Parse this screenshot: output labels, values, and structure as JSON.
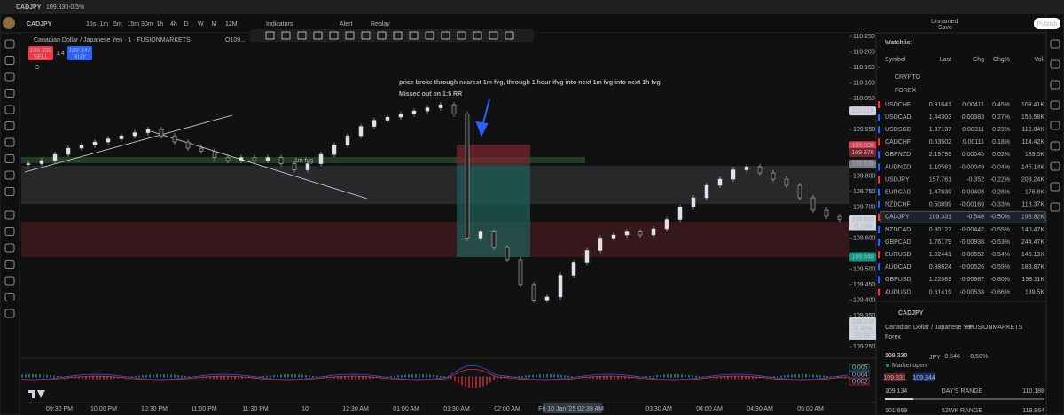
{
  "window": {
    "tab": "CADJPY",
    "tab_price": "109.330",
    "tab_change": "-0.5%"
  },
  "toolbar": {
    "symbol": "CADJPY",
    "intervals": [
      "15s",
      "1m",
      "5m",
      "15m",
      "30m",
      "1h",
      "4h",
      "D",
      "W",
      "M",
      "12M"
    ],
    "indicators": "Indicators",
    "alert": "Alert",
    "replay": "Replay",
    "layout": "Unnamed",
    "save": "Save",
    "publish": "Publish"
  },
  "chart": {
    "legend": "Canadian Dollar / Japanese Yen · 1 · FUSIONMARKETS",
    "ohlc": "O109...",
    "sell_price": "109.330",
    "sell": "SELL",
    "buy_price": "109.344",
    "buy": "BUY",
    "spread": "1.4",
    "indicator_count": "3",
    "annotation_1": "price broke through nearest 1m fvg, through 1 hour ifvg into next 1m fvg into next 1h fvg",
    "annotation_2": "Missed out on 1:5 RR",
    "fvg_label": "1m fvg",
    "ylim": [
      109.224,
      110.259
    ],
    "yticks": [
      {
        "value": 110.25,
        "label": "110.250"
      },
      {
        "value": 110.2,
        "label": "110.200"
      },
      {
        "value": 110.15,
        "label": "110.150"
      },
      {
        "value": 110.1,
        "label": "110.100"
      },
      {
        "value": 110.05,
        "label": "110.050"
      },
      {
        "value": 109.95,
        "label": "109.950"
      },
      {
        "value": 109.8,
        "label": "109.800"
      },
      {
        "value": 109.75,
        "label": "109.750"
      },
      {
        "value": 109.7,
        "label": "109.700"
      },
      {
        "value": 109.6,
        "label": "109.600"
      },
      {
        "value": 109.5,
        "label": "109.500"
      },
      {
        "value": 109.45,
        "label": "109.450"
      },
      {
        "value": 109.4,
        "label": "109.400"
      },
      {
        "value": 109.35,
        "label": "109.350"
      },
      {
        "value": 109.25,
        "label": "109.250"
      }
    ],
    "price_tags": [
      {
        "value": 110.01,
        "label": "110.010",
        "color": "#d1d4dc"
      },
      {
        "value": 109.898,
        "label": "109.898",
        "color": "#e53950"
      },
      {
        "value": 109.876,
        "label": "109.876",
        "color": "#7a2630"
      },
      {
        "value": 109.839,
        "label": "109.839",
        "color": "#787b86"
      },
      {
        "value": 109.66,
        "label": "109.660",
        "color": "#d1d4dc"
      },
      {
        "value": 109.54,
        "label": "109.540",
        "color": "#089981"
      },
      {
        "value": 109.33,
        "label": "109.330",
        "color": "#d1d4dc"
      }
    ],
    "tag_notes": [
      "-0.19%",
      "-0.49%",
      "00:58"
    ],
    "closes": [
      109.84,
      109.85,
      109.87,
      109.89,
      109.9,
      109.91,
      109.92,
      109.93,
      109.94,
      109.95,
      109.93,
      109.91,
      109.89,
      109.88,
      109.86,
      109.85,
      109.86,
      109.85,
      109.86,
      109.84,
      109.82,
      109.84,
      109.87,
      109.9,
      109.93,
      109.96,
      109.98,
      109.99,
      110.0,
      110.01,
      110.02,
      110.03,
      110.0,
      109.6,
      109.62,
      109.57,
      109.53,
      109.45,
      109.4,
      109.41,
      109.48,
      109.52,
      109.56,
      109.6,
      109.61,
      109.62,
      109.61,
      109.63,
      109.66,
      109.7,
      109.73,
      109.77,
      109.79,
      109.82,
      109.83,
      109.81,
      109.79,
      109.77,
      109.73,
      109.69,
      109.67,
      109.66
    ],
    "time_labels": [
      "09:30 PM",
      "10:00 PM",
      "10:30 PM",
      "11:00 PM",
      "11:30 PM",
      "10",
      "12:30 AM",
      "01:00 AM",
      "01:30 AM",
      "02:00 AM",
      "Fri 10 Jan '25   02:39 AM",
      "03:30 AM",
      "04:00 AM",
      "04:30 AM",
      "05:00 AM"
    ],
    "osc_labels": [
      "0.005",
      "0.004",
      "0.002"
    ]
  },
  "watchlist": {
    "title": "Watchlist",
    "columns": [
      "Symbol",
      "Last",
      "Chg",
      "Chg%",
      "Vol."
    ],
    "sections": [
      "CRYPTO",
      "FOREX"
    ],
    "rows": [
      [
        "USDCHF",
        "0.91641",
        "0.00411",
        "0.45%",
        "103.41K"
      ],
      [
        "USDCAD",
        "1.44303",
        "0.00383",
        "0.27%",
        "155.58K"
      ],
      [
        "USDSGD",
        "1.37137",
        "0.00311",
        "0.23%",
        "118.84K"
      ],
      [
        "CADCHF",
        "0.63502",
        "0.00111",
        "0.18%",
        "114.42K"
      ],
      [
        "GBPNZD",
        "2.19799",
        "0.00045",
        "0.02%",
        "189.5K"
      ],
      [
        "AUDNZD",
        "1.10581",
        "-0.00049",
        "-0.04%",
        "145.14K"
      ],
      [
        "USDJPY",
        "157.761",
        "-0.352",
        "-0.22%",
        "203.24K"
      ],
      [
        "EURCAD",
        "1.47839",
        "-0.00408",
        "-0.28%",
        "176.8K"
      ],
      [
        "NZDCHF",
        "0.50899",
        "-0.00169",
        "-0.33%",
        "118.37K"
      ],
      [
        "CADJPY",
        "109.331",
        "-0.546",
        "-0.50%",
        "196.82K"
      ],
      [
        "NZDCAD",
        "0.80127",
        "-0.00442",
        "-0.55%",
        "140.47K"
      ],
      [
        "GBPCAD",
        "1.76179",
        "-0.00938",
        "-0.53%",
        "244.47K"
      ],
      [
        "EURUSD",
        "1.02441",
        "-0.00552",
        "-0.54%",
        "146.13K"
      ],
      [
        "AUDCAD",
        "0.88624",
        "-0.00526",
        "-0.59%",
        "183.87K"
      ],
      [
        "GBPUSD",
        "1.22089",
        "-0.00987",
        "-0.80%",
        "198.11K"
      ],
      [
        "AUDUSD",
        "0.61419",
        "-0.00533",
        "-0.86%",
        "139.5K"
      ]
    ]
  },
  "details": {
    "symbol": "CADJPY",
    "name": "Canadian Dollar / Japanese Yen",
    "exchange": "FUSIONMARKETS",
    "market": "Forex",
    "price": "109.330",
    "currency": "JPY",
    "change": "-0.546",
    "change_pct": "-0.50%",
    "status": "Market open",
    "bid": "109.331",
    "ask": "109.344",
    "day_low": "109.134",
    "day_range": "DAY'S RANGE",
    "day_high": "110.188",
    "year_low": "101.669",
    "year_range": "52WK RANGE",
    "year_high": "118.864"
  }
}
